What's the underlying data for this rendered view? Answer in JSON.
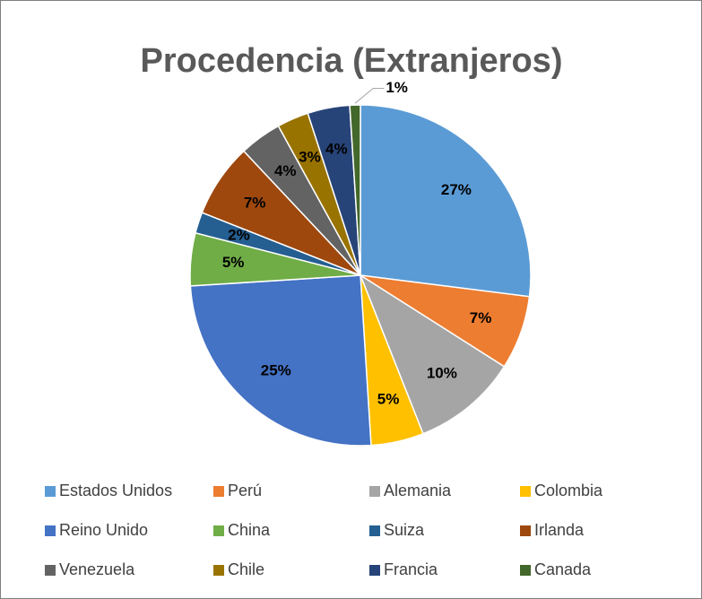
{
  "chart_data": {
    "type": "pie",
    "title": "Procedencia (Extranjeros)",
    "categories": [
      "Estados Unidos",
      "Perú",
      "Alemania",
      "Colombia",
      "Reino Unido",
      "China",
      "Suiza",
      "Irlanda",
      "Venezuela",
      "Chile",
      "Francia",
      "Canada"
    ],
    "values": [
      27,
      7,
      10,
      5,
      25,
      5,
      2,
      7,
      4,
      3,
      4,
      1
    ],
    "value_labels": [
      "27%",
      "7%",
      "10%",
      "5%",
      "25%",
      "5%",
      "2%",
      "7%",
      "4%",
      "3%",
      "4%",
      "1%"
    ],
    "colors": [
      "#5b9bd5",
      "#ed7d31",
      "#a5a5a5",
      "#ffc000",
      "#4472c4",
      "#70ad47",
      "#255e91",
      "#9e480e",
      "#636363",
      "#997300",
      "#264478",
      "#43682b"
    ],
    "legend": "bottom"
  }
}
